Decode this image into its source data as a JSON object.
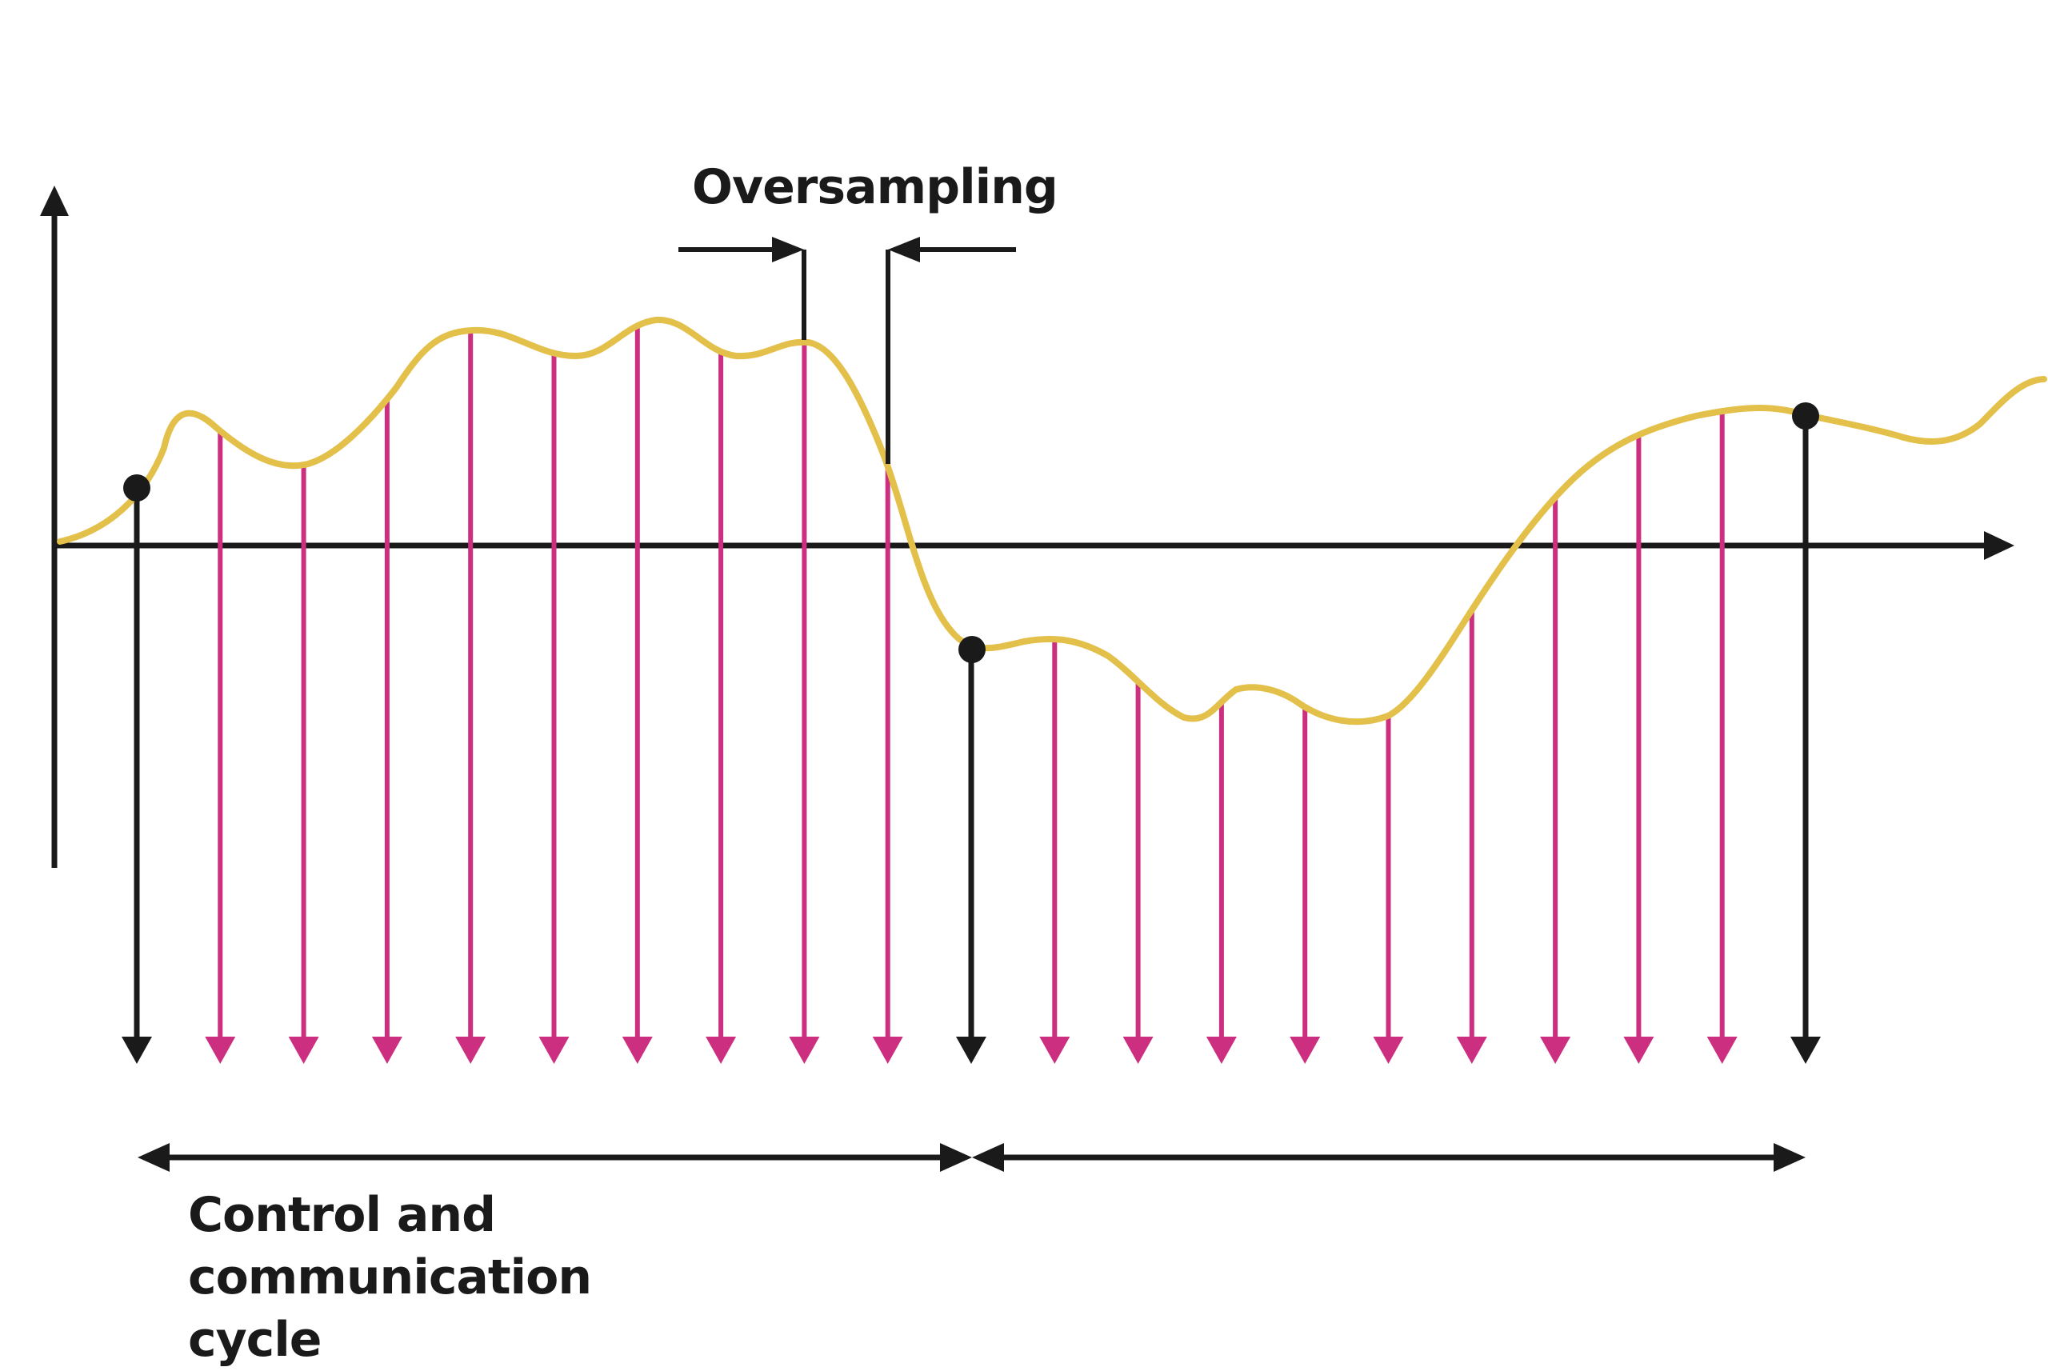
{
  "labels": {
    "oversampling": "Oversampling",
    "cycle_line1": "Control and communication",
    "cycle_line2": "cycle"
  },
  "colors": {
    "axis": "#1a1a1a",
    "signal": "#e3c04a",
    "oversample_arrow": "#cc2f7f",
    "cycle_arrow": "#1a1a1a",
    "sample_point": "#1a1a1a"
  },
  "diagram_data": {
    "cycle_sample_count": 3,
    "oversamples_per_cycle": 9,
    "total_cycles_shown": 2
  }
}
